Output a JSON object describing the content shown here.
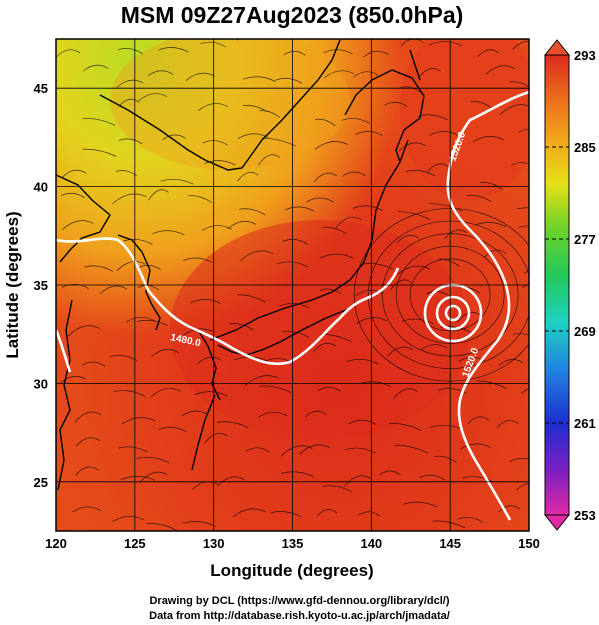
{
  "chart_data": {
    "type": "heatmap",
    "title": "MSM 09Z27Aug2023 (850.0hPa)",
    "xlabel": "Longitude (degrees)",
    "ylabel": "Latitude  (degrees)",
    "xlim": [
      120,
      150
    ],
    "ylim": [
      22.5,
      47.5
    ],
    "xticks": [
      "120",
      "125",
      "130",
      "135",
      "140",
      "145",
      "150"
    ],
    "yticks": [
      "25",
      "30",
      "35",
      "40",
      "45"
    ],
    "colorbar": {
      "min": 253,
      "max": 293,
      "labels": [
        "293",
        "285",
        "277",
        "269",
        "261",
        "253"
      ],
      "colors": [
        "#e02aa6",
        "#1e2fd0",
        "#1fa3e0",
        "#1ed1a8",
        "#28c83c",
        "#9ad628",
        "#e6e018",
        "#f2a31c",
        "#e8501a",
        "#d8281c"
      ]
    },
    "contours": [
      {
        "label": "1480.0"
      },
      {
        "label": "1520.0"
      },
      {
        "label": "1520.0"
      }
    ],
    "grid": true,
    "overlays": [
      "coastlines",
      "streamlines"
    ]
  },
  "credits": {
    "line1": "Drawing by DCL (https://www.gfd-dennou.org/library/dcl/)",
    "line2": "Data from http://database.rish.kyoto-u.ac.jp/arch/jmadata/"
  }
}
